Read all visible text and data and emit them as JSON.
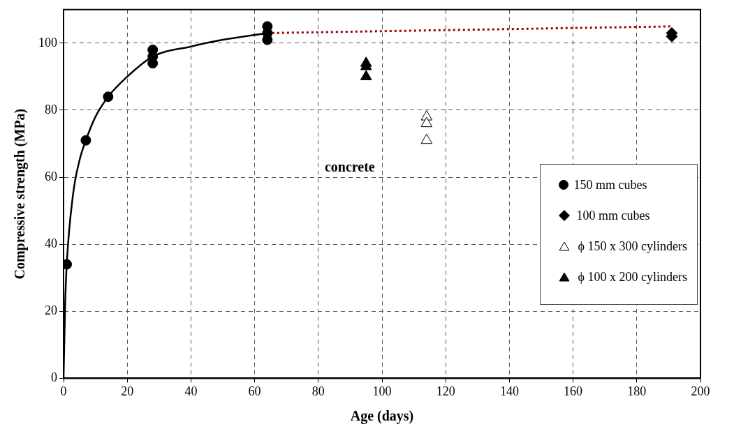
{
  "chart_data": {
    "type": "scatter",
    "xlabel": "Age (days)",
    "ylabel": "Compressive strength (MPa)",
    "xlim": [
      0,
      200
    ],
    "xticks": [
      0,
      20,
      40,
      60,
      80,
      100,
      120,
      140,
      160,
      180,
      200
    ],
    "ylim": [
      0,
      110
    ],
    "yticks": [
      0,
      20,
      40,
      60,
      80,
      100
    ],
    "grid": true,
    "legend": "right",
    "annotations": [
      "concrete"
    ],
    "series": [
      {
        "name": "150 mm cubes",
        "color": "#000000",
        "marker": "circle",
        "x": [
          1,
          7,
          14,
          28,
          28,
          28,
          64,
          64,
          64
        ],
        "values": [
          34,
          71,
          84,
          98,
          96,
          94,
          105,
          103,
          101
        ]
      },
      {
        "name": "100 mm cubes",
        "color": "#000000",
        "marker": "diamond",
        "x": [
          191,
          191
        ],
        "values": [
          103,
          102
        ]
      },
      {
        "name": "ϕ 150 x 300 cylinders",
        "color": "#ffffff",
        "marker": "triangle",
        "x": [
          114,
          114,
          114
        ],
        "values": [
          78,
          76,
          71
        ]
      },
      {
        "name": "ϕ 100 x 200 cylinders",
        "color": "#000000",
        "marker": "triangle",
        "x": [
          95,
          95,
          95
        ],
        "values": [
          94,
          93,
          90
        ]
      },
      {
        "type": "line",
        "color": "#000000",
        "line_style": "solid",
        "marker": "none",
        "x": [
          0,
          0.5,
          1,
          3,
          5,
          7,
          10,
          14,
          20,
          28,
          40,
          50,
          64
        ],
        "values": [
          0,
          22,
          34,
          55,
          65,
          71,
          78,
          84,
          90,
          96,
          99,
          101,
          103
        ]
      },
      {
        "type": "line",
        "color": "#990000",
        "line_style": "dotted",
        "marker": "none",
        "x": [
          64,
          191
        ],
        "values": [
          103,
          105
        ]
      }
    ]
  }
}
